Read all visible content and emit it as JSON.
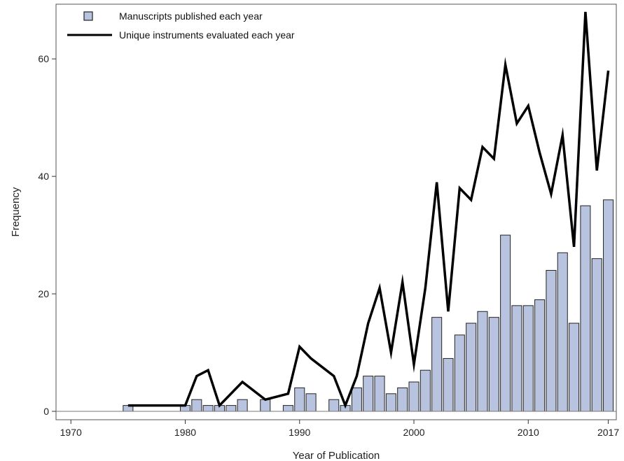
{
  "chart_data": {
    "type": "bar+line",
    "xlabel": "Year of Publication",
    "ylabel": "Frequency",
    "xlim": [
      1969,
      1968.5
    ],
    "x_range": [
      1968.7,
      2017.7
    ],
    "ylim": [
      0,
      68
    ],
    "x_ticks": [
      1970,
      1980,
      1990,
      2000,
      2010,
      2017
    ],
    "x_tick_labels": [
      "1970",
      "1980",
      "1990",
      "2000",
      "2010",
      "2017"
    ],
    "y_ticks": [
      0,
      20,
      40,
      60
    ],
    "y_tick_labels": [
      "0",
      "20",
      "40",
      "60"
    ],
    "grid": false,
    "legend_position": "top-left",
    "series": [
      {
        "name": "Manuscripts published each year",
        "kind": "bar",
        "color": "#b8c4df",
        "edge_color": "#222222",
        "points": [
          {
            "x": 1975,
            "y": 1
          },
          {
            "x": 1980,
            "y": 1
          },
          {
            "x": 1981,
            "y": 2
          },
          {
            "x": 1982,
            "y": 1
          },
          {
            "x": 1983,
            "y": 1
          },
          {
            "x": 1984,
            "y": 1
          },
          {
            "x": 1985,
            "y": 2
          },
          {
            "x": 1987,
            "y": 2
          },
          {
            "x": 1989,
            "y": 1
          },
          {
            "x": 1990,
            "y": 4
          },
          {
            "x": 1991,
            "y": 3
          },
          {
            "x": 1993,
            "y": 2
          },
          {
            "x": 1994,
            "y": 1
          },
          {
            "x": 1995,
            "y": 4
          },
          {
            "x": 1996,
            "y": 6
          },
          {
            "x": 1997,
            "y": 6
          },
          {
            "x": 1998,
            "y": 3
          },
          {
            "x": 1999,
            "y": 4
          },
          {
            "x": 2000,
            "y": 5
          },
          {
            "x": 2001,
            "y": 7
          },
          {
            "x": 2002,
            "y": 16
          },
          {
            "x": 2003,
            "y": 9
          },
          {
            "x": 2004,
            "y": 13
          },
          {
            "x": 2005,
            "y": 15
          },
          {
            "x": 2006,
            "y": 17
          },
          {
            "x": 2007,
            "y": 16
          },
          {
            "x": 2008,
            "y": 30
          },
          {
            "x": 2009,
            "y": 18
          },
          {
            "x": 2010,
            "y": 18
          },
          {
            "x": 2011,
            "y": 19
          },
          {
            "x": 2012,
            "y": 24
          },
          {
            "x": 2013,
            "y": 27
          },
          {
            "x": 2014,
            "y": 15
          },
          {
            "x": 2015,
            "y": 35
          },
          {
            "x": 2016,
            "y": 26
          },
          {
            "x": 2017,
            "y": 36
          }
        ]
      },
      {
        "name": "Unique instruments evaluated each year",
        "kind": "line",
        "color": "#000000",
        "points": [
          {
            "x": 1975,
            "y": 1
          },
          {
            "x": 1980,
            "y": 1
          },
          {
            "x": 1981,
            "y": 6
          },
          {
            "x": 1982,
            "y": 7
          },
          {
            "x": 1983,
            "y": 1
          },
          {
            "x": 1985,
            "y": 5
          },
          {
            "x": 1987,
            "y": 2
          },
          {
            "x": 1989,
            "y": 3
          },
          {
            "x": 1990,
            "y": 11
          },
          {
            "x": 1991,
            "y": 9
          },
          {
            "x": 1993,
            "y": 6
          },
          {
            "x": 1994,
            "y": 1
          },
          {
            "x": 1995,
            "y": 6
          },
          {
            "x": 1996,
            "y": 15
          },
          {
            "x": 1997,
            "y": 21
          },
          {
            "x": 1998,
            "y": 10
          },
          {
            "x": 1999,
            "y": 22
          },
          {
            "x": 2000,
            "y": 8
          },
          {
            "x": 2001,
            "y": 21
          },
          {
            "x": 2002,
            "y": 39
          },
          {
            "x": 2003,
            "y": 17
          },
          {
            "x": 2004,
            "y": 38
          },
          {
            "x": 2005,
            "y": 36
          },
          {
            "x": 2006,
            "y": 45
          },
          {
            "x": 2007,
            "y": 43
          },
          {
            "x": 2008,
            "y": 59
          },
          {
            "x": 2009,
            "y": 49
          },
          {
            "x": 2010,
            "y": 52
          },
          {
            "x": 2011,
            "y": 44
          },
          {
            "x": 2012,
            "y": 37
          },
          {
            "x": 2013,
            "y": 47
          },
          {
            "x": 2014,
            "y": 28
          },
          {
            "x": 2015,
            "y": 68
          },
          {
            "x": 2016,
            "y": 41
          },
          {
            "x": 2017,
            "y": 58
          }
        ]
      }
    ]
  }
}
